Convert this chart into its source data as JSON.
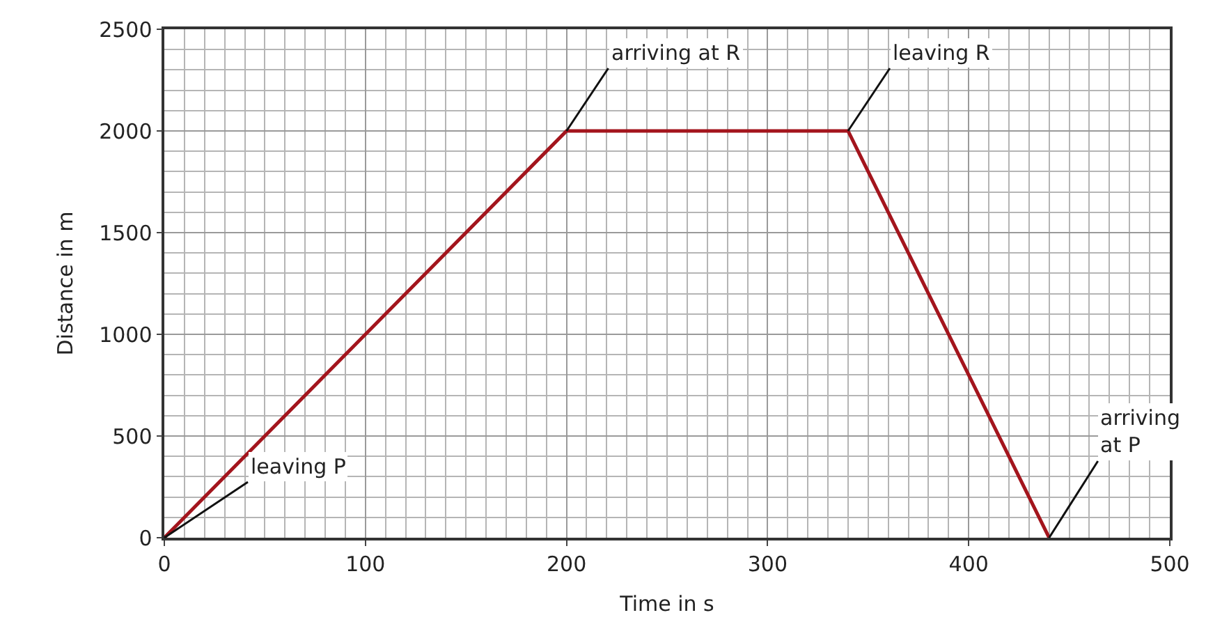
{
  "chart_data": {
    "type": "line",
    "xlabel": "Time in s",
    "ylabel": "Distance in m",
    "x": [
      0,
      200,
      340,
      440
    ],
    "series": [
      {
        "color": "#a3151d",
        "values": [
          0,
          2000,
          2000,
          0
        ]
      }
    ],
    "xlim": [
      0,
      500
    ],
    "xticks": [
      0,
      100,
      200,
      300,
      400,
      500
    ],
    "ylim": [
      0,
      2500
    ],
    "yticks": [
      0,
      500,
      1000,
      1500,
      2000,
      2500
    ],
    "grid": true,
    "marker": "none",
    "line_style": "solid",
    "annotations": [
      {
        "text": "leaving P",
        "x": 0,
        "y": 0
      },
      {
        "text": "arriving at R",
        "x": 200,
        "y": 2000
      },
      {
        "text": "leaving R",
        "x": 340,
        "y": 2000
      },
      {
        "text": "arriving\nat P",
        "x": 440,
        "y": 0
      }
    ]
  }
}
